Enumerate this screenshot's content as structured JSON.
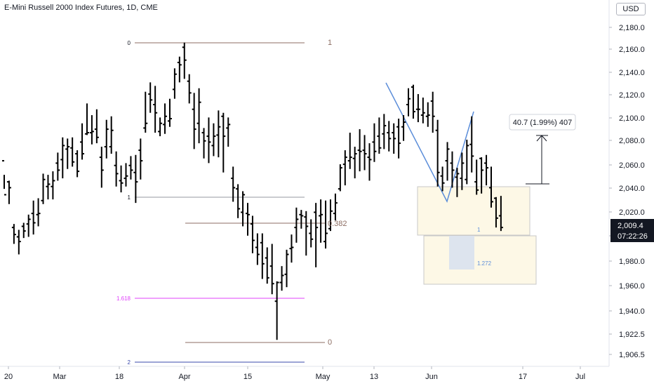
{
  "header": {
    "title": "E-Mini Russell 2000 Index Futures, 1D, CME",
    "currency": "USD"
  },
  "price_badge": {
    "price": "2,009.4",
    "countdown": "07:22:26"
  },
  "measure_label": "40.7 (1.99%) 407",
  "fib_labels": {
    "upper_0": "0",
    "upper_1": "1",
    "lower_1": "1",
    "lower_0382": "0.382",
    "lower_1618": "1.618",
    "lower_0": "0",
    "lower_2": "2"
  },
  "projection_labels": {
    "one": "1",
    "ext": "1.272"
  },
  "colors": {
    "bar": "#000000",
    "fib_brown": "#8d6e63",
    "fib_gray": "#9598a1",
    "fib_pink": "#e040fb",
    "fib_blue": "#3949ab",
    "pattern": "#5b8dd9",
    "box_fill": "#fdf8e6",
    "box_border": "#c8c8c8",
    "ext_fill": "#dde4ee",
    "badge_bg": "#131722",
    "proj_text": "#5b8dd9"
  },
  "chart_data": {
    "type": "ohlc",
    "y_ticks": [
      "2,180.0",
      "2,160.0",
      "2,140.0",
      "2,120.0",
      "2,100.0",
      "2,080.0",
      "2,060.0",
      "2,040.0",
      "2,020.0",
      "2,000.0",
      "1,980.0",
      "1,960.0",
      "1,940.0",
      "1,922.5",
      "1,906.5"
    ],
    "x_ticks": [
      "20",
      "Mar",
      "18",
      "Apr",
      "15",
      "May",
      "13",
      "Jun",
      "17",
      "Jul"
    ],
    "ylim": [
      1900,
      2190
    ],
    "bars": [
      [
        2066,
        2054,
        2042,
        2037
      ],
      [
        2048,
        2049,
        2029,
        2043
      ],
      [
        2009,
        2012,
        1995,
        2003
      ],
      [
        2001,
        2007,
        1986,
        1997
      ],
      [
        2010,
        2013,
        2000,
        2006
      ],
      [
        2012,
        2020,
        2001,
        2016
      ],
      [
        2021,
        2032,
        2003,
        2013
      ],
      [
        2020,
        2034,
        2010,
        2021
      ],
      [
        2032,
        2055,
        2029,
        2050
      ],
      [
        2044,
        2054,
        2033,
        2046
      ],
      [
        2044,
        2057,
        2033,
        2049
      ],
      [
        2064,
        2073,
        2049,
        2058
      ],
      [
        2067,
        2086,
        2051,
        2079
      ],
      [
        2076,
        2085,
        2059,
        2078
      ],
      [
        2077,
        2086,
        2061,
        2065
      ],
      [
        2072,
        2075,
        2052,
        2057
      ],
      [
        2082,
        2098,
        2067,
        2072
      ],
      [
        2089,
        2115,
        2088,
        2090
      ],
      [
        2090,
        2105,
        2080,
        2091
      ],
      [
        2093,
        2110,
        2081,
        2086
      ],
      [
        2069,
        2078,
        2043,
        2058
      ],
      [
        2078,
        2101,
        2068,
        2093
      ],
      [
        2078,
        2104,
        2072,
        2092
      ],
      [
        2062,
        2074,
        2044,
        2055
      ],
      [
        2049,
        2062,
        2039,
        2047
      ],
      [
        2051,
        2064,
        2044,
        2053
      ],
      [
        2062,
        2070,
        2050,
        2058
      ],
      [
        2056,
        2071,
        2030,
        2048
      ],
      [
        2075,
        2085,
        2050,
        2066
      ],
      [
        2094,
        2125,
        2090,
        2098
      ],
      [
        2123,
        2133,
        2107,
        2118
      ],
      [
        2114,
        2130,
        2090,
        2107
      ],
      [
        2091,
        2103,
        2087,
        2098
      ],
      [
        2097,
        2115,
        2089,
        2104
      ],
      [
        2100,
        2119,
        2095,
        2102
      ],
      [
        2127,
        2145,
        2119,
        2140
      ],
      [
        2150,
        2155,
        2133,
        2148
      ],
      [
        2163,
        2167,
        2136,
        2152
      ],
      [
        2134,
        2140,
        2115,
        2124
      ],
      [
        2110,
        2124,
        2076,
        2093
      ],
      [
        2098,
        2128,
        2081,
        2116
      ],
      [
        2090,
        2094,
        2068,
        2083
      ],
      [
        2087,
        2103,
        2064,
        2082
      ],
      [
        2079,
        2098,
        2070,
        2087
      ],
      [
        2088,
        2109,
        2069,
        2095
      ],
      [
        2104,
        2107,
        2056,
        2087
      ],
      [
        2094,
        2103,
        2078,
        2097
      ],
      [
        2051,
        2061,
        2031,
        2043
      ],
      [
        2042,
        2046,
        2017,
        2025
      ],
      [
        2022,
        2040,
        2010,
        2037
      ],
      [
        2021,
        2030,
        2002,
        2020
      ],
      [
        2012,
        2019,
        1987,
        1998
      ],
      [
        1992,
        2004,
        1977,
        1986
      ],
      [
        1996,
        2004,
        1965,
        1978
      ],
      [
        1983,
        1992,
        1961,
        1966
      ],
      [
        1976,
        1995,
        1952,
        1961
      ],
      [
        1946,
        1963,
        1913,
        1962
      ],
      [
        1962,
        1976,
        1955,
        1968
      ],
      [
        1969,
        1990,
        1958,
        1986
      ],
      [
        1991,
        2003,
        1979,
        1992
      ],
      [
        2009,
        2026,
        1996,
        2016
      ],
      [
        2020,
        2024,
        2008,
        2019
      ],
      [
        2018,
        2023,
        1985,
        2010
      ],
      [
        2004,
        2016,
        1992,
        1999
      ],
      [
        2022,
        2030,
        1975,
        2009
      ],
      [
        2019,
        2033,
        1996,
        2020
      ],
      [
        1997,
        2032,
        1991,
        2004
      ],
      [
        2008,
        2033,
        2006,
        2023
      ],
      [
        2021,
        2038,
        2015,
        2030
      ],
      [
        2042,
        2063,
        2040,
        2060
      ],
      [
        2063,
        2075,
        2045,
        2069
      ],
      [
        2066,
        2090,
        2059,
        2069
      ],
      [
        2068,
        2078,
        2051,
        2072
      ],
      [
        2075,
        2093,
        2057,
        2074
      ],
      [
        2075,
        2088,
        2058,
        2072
      ],
      [
        2069,
        2081,
        2049,
        2067
      ],
      [
        2082,
        2098,
        2065,
        2074
      ],
      [
        2087,
        2103,
        2072,
        2077
      ],
      [
        2089,
        2106,
        2076,
        2096
      ],
      [
        2090,
        2100,
        2074,
        2085
      ],
      [
        2090,
        2098,
        2072,
        2085
      ],
      [
        2095,
        2102,
        2068,
        2081
      ],
      [
        2095,
        2105,
        2083,
        2099
      ],
      [
        2114,
        2128,
        2104,
        2119
      ],
      [
        2129,
        2131,
        2102,
        2108
      ],
      [
        2110,
        2123,
        2099,
        2110
      ],
      [
        2105,
        2120,
        2098,
        2107
      ],
      [
        2104,
        2116,
        2095,
        2105
      ],
      [
        2117,
        2125,
        2090,
        2104
      ],
      [
        2092,
        2101,
        2044,
        2056
      ],
      [
        2053,
        2061,
        2040,
        2047
      ],
      [
        2066,
        2082,
        2049,
        2076
      ],
      [
        2064,
        2074,
        2043,
        2058
      ],
      [
        2052,
        2060,
        2035,
        2055
      ],
      [
        2051,
        2073,
        2041,
        2064
      ],
      [
        2050,
        2084,
        2046,
        2079
      ],
      [
        2080,
        2104,
        2056,
        2070
      ],
      [
        2048,
        2067,
        2037,
        2041
      ],
      [
        2068,
        2069,
        2038,
        2058
      ],
      [
        2064,
        2071,
        2045,
        2060
      ],
      [
        2043,
        2061,
        2026,
        2031
      ],
      [
        2034,
        2035,
        2009,
        2017
      ],
      [
        2019,
        2036,
        2006,
        2009
      ]
    ]
  }
}
